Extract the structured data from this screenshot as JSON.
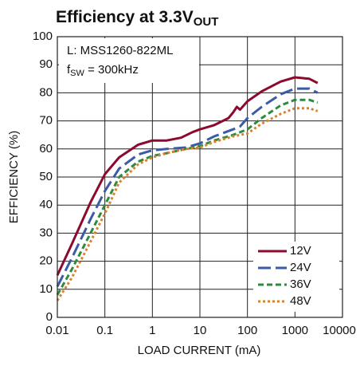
{
  "chart_data": {
    "type": "line",
    "title": "Efficiency at 3.3V",
    "title_subscript": "OUT",
    "annotations": [
      {
        "text": "L: MSS1260-822ML"
      },
      {
        "text": "f",
        "subscript": "SW",
        "suffix": " = 300kHz"
      }
    ],
    "xlabel": "LOAD CURRENT (mA)",
    "ylabel": "EFFICIENCY (%)",
    "xscale": "log",
    "xlim": [
      0.01,
      10000
    ],
    "ylim": [
      0,
      100
    ],
    "xticks": [
      0.01,
      0.1,
      1,
      10,
      100,
      1000,
      10000
    ],
    "yticks": [
      0,
      10,
      20,
      30,
      40,
      50,
      60,
      70,
      80,
      90,
      100
    ],
    "grid": true,
    "legend": "lower right",
    "series": [
      {
        "name": "12V",
        "color": "#8b0a2e",
        "dash": "solid",
        "x": [
          0.01,
          0.02,
          0.05,
          0.1,
          0.2,
          0.5,
          1,
          2,
          4,
          7,
          10,
          20,
          40,
          50,
          60,
          70,
          100,
          200,
          500,
          1000,
          2000,
          3000
        ],
        "values": [
          15,
          26,
          41,
          51,
          57,
          61.5,
          63,
          63,
          64,
          66,
          67,
          68.5,
          71,
          73,
          75,
          74,
          77,
          80.5,
          84,
          85.5,
          85,
          83.5
        ]
      },
      {
        "name": "24V",
        "color": "#3b5aa8",
        "dash": "long",
        "x": [
          0.01,
          0.02,
          0.05,
          0.1,
          0.2,
          0.5,
          1,
          2,
          5,
          10,
          20,
          50,
          70,
          100,
          200,
          500,
          1000,
          2000,
          3000
        ],
        "values": [
          11,
          21,
          35,
          45,
          53,
          58,
          59.5,
          60,
          60.5,
          62,
          64.5,
          67,
          68,
          71,
          75,
          79.5,
          81.5,
          81.5,
          80
        ]
      },
      {
        "name": "36V",
        "color": "#2e8b3e",
        "dash": "short",
        "x": [
          0.01,
          0.02,
          0.05,
          0.1,
          0.2,
          0.5,
          1,
          2,
          5,
          10,
          20,
          50,
          100,
          200,
          500,
          1000,
          2000,
          3000
        ],
        "values": [
          8,
          17,
          30,
          40,
          50,
          55.5,
          57.5,
          58.5,
          60,
          61,
          63,
          65,
          67,
          71,
          75.5,
          77.5,
          77.5,
          76.5
        ]
      },
      {
        "name": "48V",
        "color": "#d9822b",
        "dash": "dot",
        "x": [
          0.01,
          0.02,
          0.05,
          0.1,
          0.2,
          0.5,
          1,
          2,
          5,
          10,
          20,
          50,
          100,
          200,
          500,
          1000,
          2000,
          3000
        ],
        "values": [
          6,
          14,
          27,
          37,
          48,
          54.5,
          57,
          58.5,
          60,
          60.5,
          62.5,
          64.5,
          65.5,
          69,
          72.5,
          74.5,
          74.5,
          73.5
        ]
      }
    ]
  }
}
